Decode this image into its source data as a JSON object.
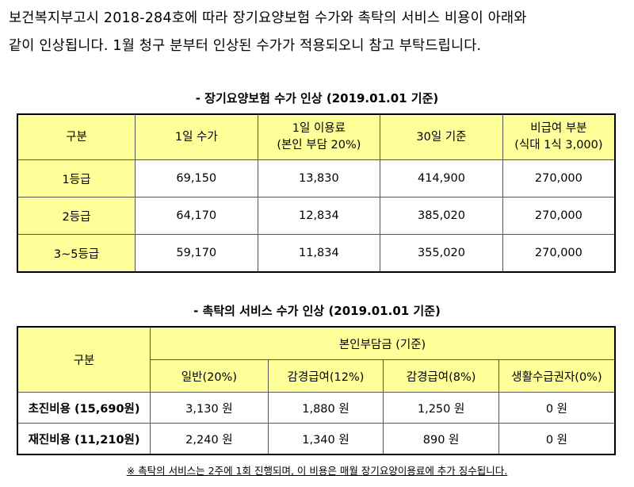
{
  "intro": {
    "line1": "보건복지부고시 2018-284호에 따라 장기요양보험 수가와 촉탁의 서비스 비용이 아래와",
    "line2": "같이 인상됩니다. 1월 청구 분부터 인상된 수가가 적용되오니 참고 부탁드립니다."
  },
  "table1": {
    "title": "- 장기요양보험 수가 인상 (2019.01.01 기준)",
    "headers": [
      {
        "l1": "구분",
        "l2": ""
      },
      {
        "l1": "1일 수가",
        "l2": ""
      },
      {
        "l1": "1일 이용료",
        "l2": "(본인 부담 20%)"
      },
      {
        "l1": "30일 기준",
        "l2": ""
      },
      {
        "l1": "비급여 부분",
        "l2": "(식대 1식 3,000)"
      }
    ],
    "rows": [
      [
        "1등급",
        "69,150",
        "13,830",
        "414,900",
        "270,000"
      ],
      [
        "2등급",
        "64,170",
        "12,834",
        "385,020",
        "270,000"
      ],
      [
        "3~5등급",
        "59,170",
        "11,834",
        "355,020",
        "270,000"
      ]
    ]
  },
  "table2": {
    "title": "- 촉탁의 서비스 수가 인상 (2019.01.01 기준)",
    "header_main": "구분",
    "header_group": "본인부담금 (기준)",
    "subheaders": [
      "일반(20%)",
      "감경급여(12%)",
      "감경급여(8%)",
      "생활수급권자(0%)"
    ],
    "rows": [
      [
        "초진비용 (15,690원)",
        "3,130 원",
        "1,880 원",
        "1,250 원",
        "0 원"
      ],
      [
        "재진비용 (11,210원)",
        "2,240 원",
        "1,340 원",
        "890 원",
        "0 원"
      ]
    ]
  },
  "footnote": "※ 촉탁의 서비스는 2주에 1회 진행되며, 이 비용은 매월 장기요양이용료에 추가 징수됩니다."
}
